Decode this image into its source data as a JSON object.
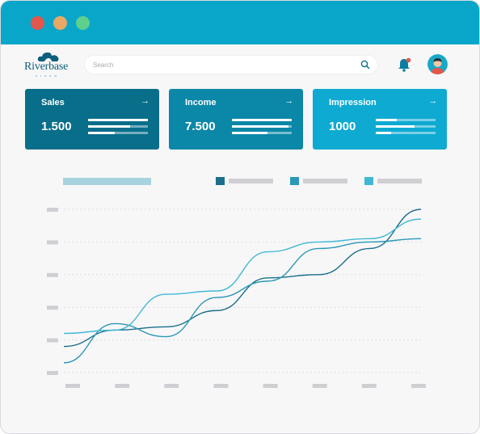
{
  "window": {
    "controls": [
      "close",
      "minimize",
      "maximize"
    ]
  },
  "brand": {
    "name": "Riverbase",
    "sub": "cloud",
    "icon": "cloud-logo-icon"
  },
  "search": {
    "placeholder": "Search",
    "value": ""
  },
  "header": {
    "icons": [
      "search-icon",
      "bell-icon",
      "avatar"
    ]
  },
  "colors": {
    "titlebar": "#0aa6c9",
    "card_sales": "#086e8a",
    "card_income": "#0b87a7",
    "card_impression": "#0eaad2",
    "series1": "#1a6f8c",
    "series2": "#2b98b6",
    "series3": "#3fb8d6"
  },
  "cards": [
    {
      "title": "Sales",
      "value": "1.500",
      "arrow": "→",
      "bar_levels": [
        1.0,
        0.7,
        0.45
      ]
    },
    {
      "title": "Income",
      "value": "7.500",
      "arrow": "→",
      "bar_levels": [
        1.0,
        0.95,
        0.6
      ]
    },
    {
      "title": "Impression",
      "value": "1000",
      "arrow": "→",
      "bar_levels": [
        0.35,
        0.65,
        0.25
      ]
    }
  ],
  "chart_data": {
    "type": "line",
    "title": "",
    "xlabel": "",
    "ylabel": "",
    "x": [
      0,
      1,
      2,
      3,
      4,
      5,
      6,
      7
    ],
    "ylim": [
      0,
      5
    ],
    "grid": true,
    "legend": "top-right",
    "series": [
      {
        "color": "#1a6f8c",
        "values": [
          0.8,
          1.3,
          1.4,
          1.9,
          2.9,
          3.0,
          3.8,
          5.0
        ]
      },
      {
        "color": "#2b98b6",
        "values": [
          0.3,
          1.5,
          1.1,
          2.3,
          2.8,
          3.8,
          4.0,
          4.1
        ]
      },
      {
        "color": "#3fb8d6",
        "values": [
          1.2,
          1.3,
          2.4,
          2.5,
          3.7,
          4.0,
          4.1,
          4.7
        ]
      }
    ]
  }
}
